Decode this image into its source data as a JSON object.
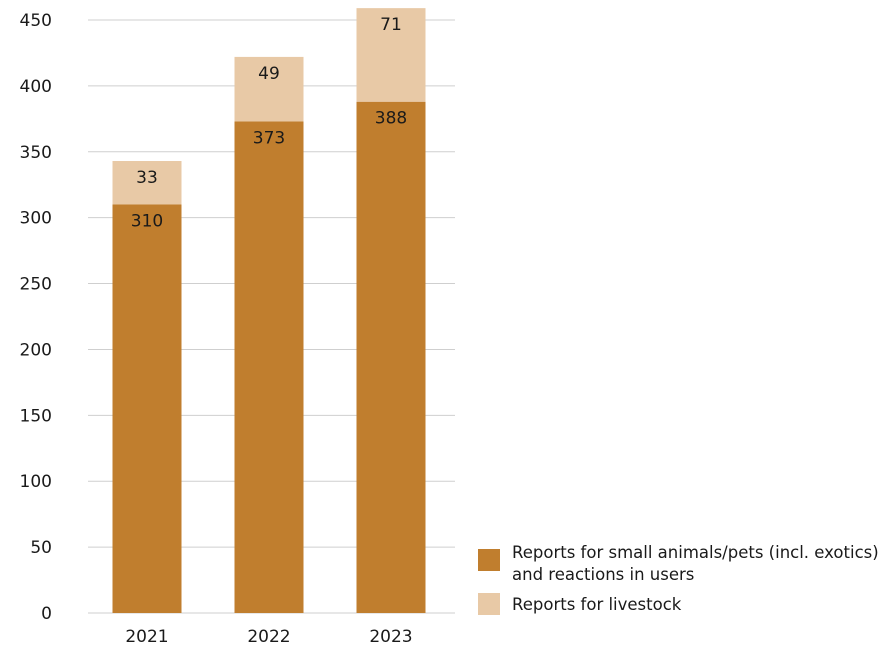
{
  "chart_data": {
    "type": "bar",
    "stacked": true,
    "categories": [
      "2021",
      "2022",
      "2023"
    ],
    "series": [
      {
        "name": "Reports for small animals/pets (incl. exotics) and reactions in users",
        "values": [
          310,
          373,
          388
        ],
        "color": "#c07e2e"
      },
      {
        "name": "Reports for livestock",
        "values": [
          33,
          49,
          71
        ],
        "color": "#e8c9a6"
      }
    ],
    "ylim": [
      0,
      450
    ],
    "yticks": [
      0,
      50,
      100,
      150,
      200,
      250,
      300,
      350,
      400,
      450
    ],
    "grid": true,
    "legend_position": "bottom-right",
    "legend_lines": [
      [
        "Reports for small animals/pets (incl. exotics)",
        "and reactions in users"
      ],
      [
        "Reports for livestock"
      ]
    ]
  }
}
